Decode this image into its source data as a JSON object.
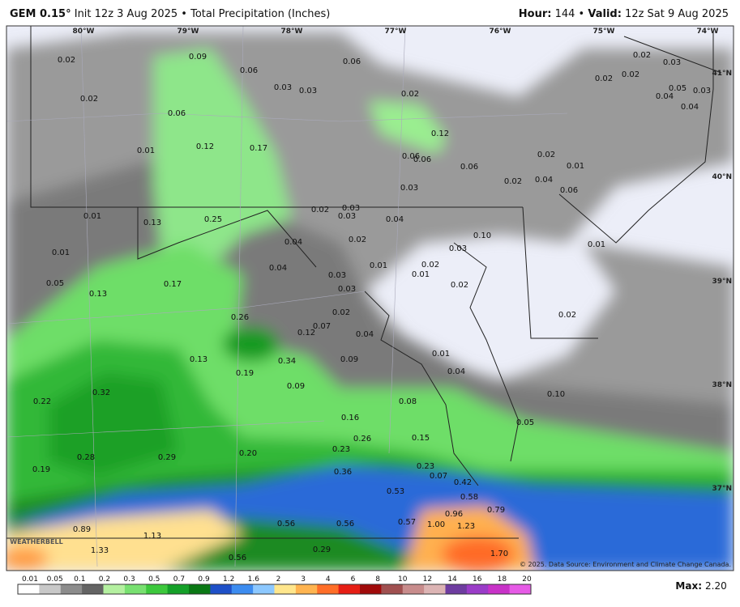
{
  "header": {
    "model": "GEM 0.15°",
    "description": "Init 12z 3 Aug 2025 • Total Precipitation (Inches)",
    "hour_label": "Hour:",
    "hour_value": "144 •",
    "valid_label": "Valid:",
    "valid_value": "12z Sat 9 Aug 2025"
  },
  "map": {
    "lon_labels": [
      "80°W",
      "79°W",
      "78°W",
      "77°W",
      "76°W",
      "75°W",
      "74°W"
    ],
    "lat_labels": [
      "41°N",
      "40°N",
      "39°N",
      "38°N",
      "37°N"
    ],
    "point_labels": [
      "0.02",
      "0.09",
      "0.06",
      "0.06",
      "0.02",
      "0.03",
      "0.02",
      "0.03",
      "0.03",
      "0.02",
      "0.02",
      "0.02",
      "0.05",
      "0.03",
      "0.04",
      "0.04",
      "0.06",
      "0.12",
      "0.01",
      "0.12",
      "0.17",
      "0.06",
      "0.06",
      "0.02",
      "0.01",
      "0.06",
      "0.02",
      "0.04",
      "0.06",
      "0.03",
      "0.02",
      "0.03",
      "0.03",
      "0.04",
      "0.01",
      "0.13",
      "0.25",
      "0.04",
      "0.02",
      "0.01",
      "0.10",
      "0.03",
      "0.01",
      "0.04",
      "0.01",
      "0.02",
      "0.01",
      "0.03",
      "0.05",
      "0.17",
      "0.03",
      "0.02",
      "0.13",
      "0.02",
      "0.02",
      "0.26",
      "0.07",
      "0.12",
      "0.04",
      "0.01",
      "0.13",
      "0.34",
      "0.09",
      "0.19",
      "0.04",
      "0.09",
      "0.10",
      "0.32",
      "0.22",
      "0.08",
      "0.16",
      "0.05",
      "0.26",
      "0.15",
      "0.23",
      "0.20",
      "0.28",
      "0.29",
      "0.19",
      "0.36",
      "0.23",
      "0.07",
      "0.42",
      "0.53",
      "0.58",
      "0.79",
      "0.96",
      "0.56",
      "0.56",
      "0.57",
      "1.00",
      "1.23",
      "0.89",
      "1.13",
      "1.33",
      "0.29",
      "0.56",
      "1.70"
    ],
    "credit": "© 2025. Data Source: Environment and Climate Change Canada.",
    "logo": "WEATHERBELL"
  },
  "legend": {
    "ticks": [
      "0.01",
      "0.05",
      "0.1",
      "0.2",
      "0.3",
      "0.5",
      "0.7",
      "0.9",
      "1.2",
      "1.6",
      "2",
      "3",
      "4",
      "6",
      "8",
      "10",
      "12",
      "14",
      "16",
      "18",
      "20"
    ],
    "colors": [
      "#ffffff",
      "#c8c8c8",
      "#8c8c8c",
      "#646464",
      "#b4f0a0",
      "#78e070",
      "#3cc83c",
      "#14a028",
      "#0a7814",
      "#1e50c8",
      "#3c8cf0",
      "#8cc8ff",
      "#ffe68c",
      "#ffb450",
      "#ff6e28",
      "#e61e14",
      "#a00a0a",
      "#a05050",
      "#c88c8c",
      "#dcb4b4",
      "#6e3ca0",
      "#9a3cc8",
      "#c832c8",
      "#e65ae6"
    ]
  },
  "max": {
    "label": "Max:",
    "value": "2.20"
  }
}
